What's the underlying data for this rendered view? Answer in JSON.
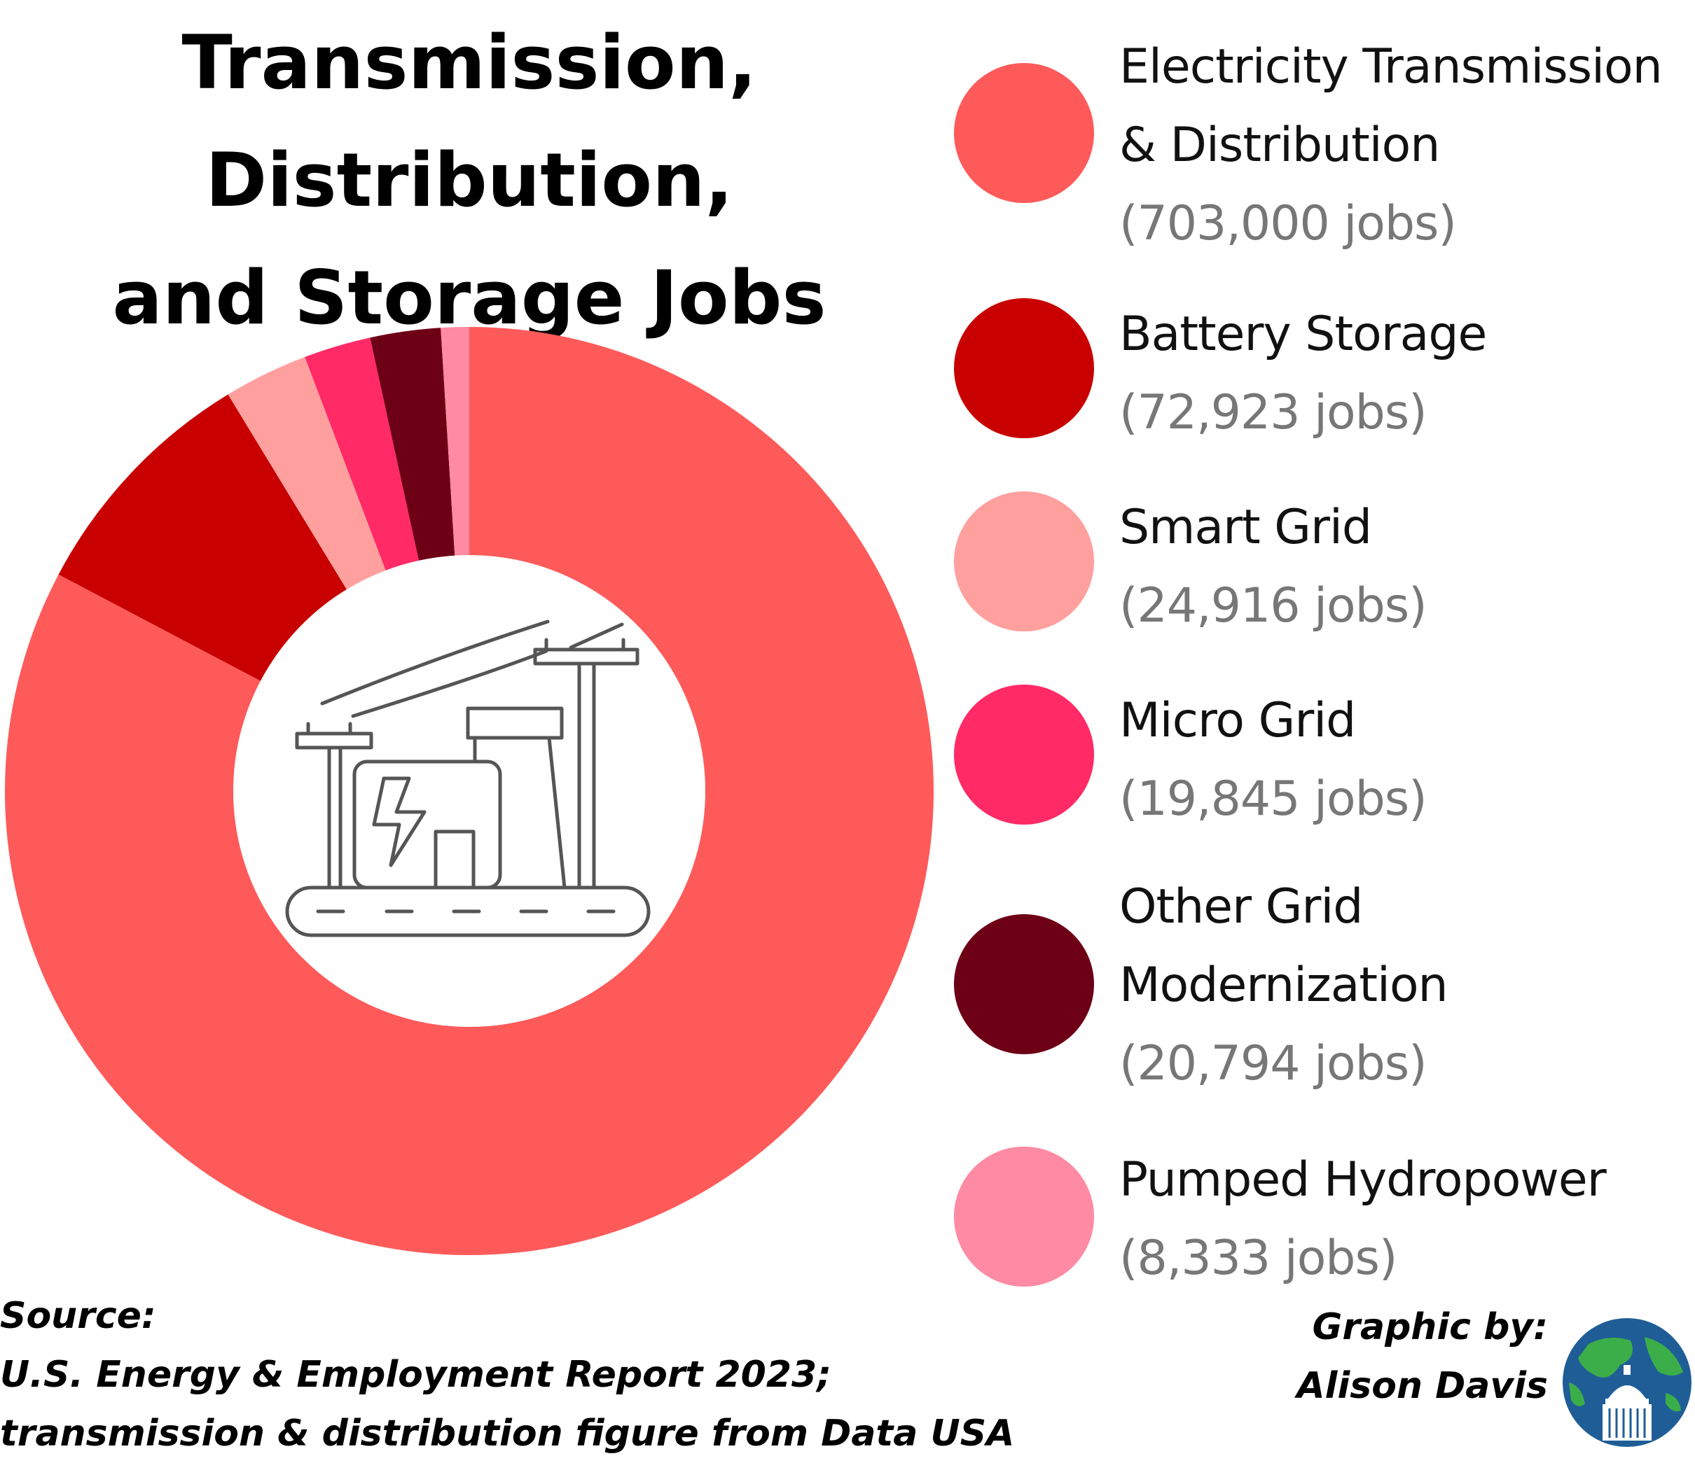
{
  "chart_data": {
    "type": "donut",
    "title_lines": [
      "Transmission,",
      "Distribution,",
      "and Storage Jobs"
    ],
    "series": [
      {
        "label_lines": [
          "Electricity Transmission",
          "& Distribution"
        ],
        "count_text": "(703,000 jobs)",
        "value": 703000,
        "color": "#ff5a5a"
      },
      {
        "label_lines": [
          "Battery Storage"
        ],
        "count_text": "(72,923 jobs)",
        "value": 72923,
        "color": "#c80000"
      },
      {
        "label_lines": [
          "Smart Grid"
        ],
        "count_text": "(24,916 jobs)",
        "value": 24916,
        "color": "#ffa09e"
      },
      {
        "label_lines": [
          "Micro Grid"
        ],
        "count_text": "(19,845 jobs)",
        "value": 19845,
        "color": "#ff2a66"
      },
      {
        "label_lines": [
          "Other Grid",
          "Modernization"
        ],
        "count_text": "(20,794 jobs)",
        "value": 20794,
        "color": "#6e0016"
      },
      {
        "label_lines": [
          "Pumped Hydropower"
        ],
        "count_text": "(8,333 jobs)",
        "value": 8333,
        "color": "#ff8aa3"
      }
    ],
    "segment_order_clockwise_from_top": [
      "Electricity Transmission & Distribution",
      "Battery Storage",
      "Smart Grid",
      "Micro Grid",
      "Other Grid Modernization",
      "Pumped Hydropower"
    ],
    "legend_position": "right"
  },
  "center_icon": "power-substation-icon",
  "source": {
    "lines": [
      "Source:",
      "U.S. Energy & Employment Report 2023;",
      "transmission & distribution figure from Data USA"
    ]
  },
  "credit": {
    "lines": [
      "Graphic by:",
      "Alison Davis"
    ],
    "logo_icon": "globe-capitol-logo-icon"
  }
}
